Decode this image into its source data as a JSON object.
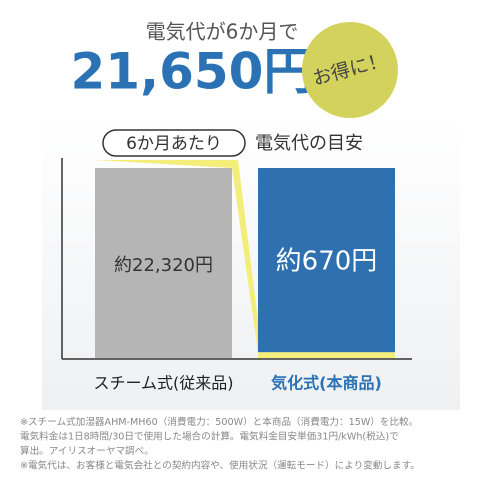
{
  "header": {
    "lead": "電気代が6か月で",
    "saving": "21,650円",
    "badge": "お得に！"
  },
  "chart_data": {
    "type": "bar",
    "period": "6か月あたり",
    "title": "電気代の目安",
    "categories": [
      "スチーム式(従来品)",
      "気化式(本商品)"
    ],
    "values": [
      22320,
      670
    ],
    "value_labels": [
      "約22,320円",
      "約670円"
    ],
    "colors": [
      "#b5b5b5",
      "#f3ee7a"
    ]
  },
  "footnotes": [
    "※スチーム式加湿器AHM-MH60（消費電力：500W）と本商品（消費電力：15W）を比較。",
    "電気料金は1日8時間/30日で使用した場合の計算。電気料金目安単価31円/kWh(税込)で",
    "算出。アイリスオーヤマ調べ。",
    "※電気代は、お客様と電気会社との契約内容や、使用状況（運転モード）により変動します。"
  ]
}
